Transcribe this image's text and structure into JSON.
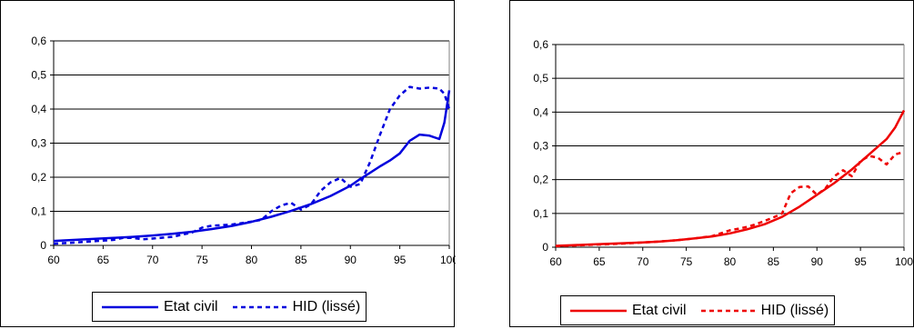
{
  "chart_data": [
    {
      "type": "line",
      "title": "",
      "xlabel": "",
      "ylabel": "",
      "xlim": [
        60,
        100
      ],
      "ylim": [
        0,
        0.6
      ],
      "x_ticks": [
        "60",
        "65",
        "70",
        "75",
        "80",
        "85",
        "90",
        "95",
        "100"
      ],
      "y_ticks": [
        "0",
        "0,1",
        "0,2",
        "0,3",
        "0,4",
        "0,5",
        "0,6"
      ],
      "grid": "horizontal",
      "legend_position": "bottom",
      "series": [
        {
          "name": "Etat civil",
          "style": "solid",
          "color": "#0000dd",
          "x": [
            60,
            62,
            64,
            66,
            68,
            70,
            72,
            74,
            76,
            78,
            80,
            82,
            84,
            86,
            88,
            90,
            91,
            92,
            93,
            94,
            95,
            96,
            97,
            98,
            99,
            99.5,
            100
          ],
          "y": [
            0.013,
            0.016,
            0.019,
            0.022,
            0.025,
            0.029,
            0.034,
            0.04,
            0.048,
            0.057,
            0.069,
            0.084,
            0.101,
            0.121,
            0.145,
            0.175,
            0.195,
            0.213,
            0.232,
            0.249,
            0.27,
            0.307,
            0.325,
            0.322,
            0.312,
            0.36,
            0.455
          ]
        },
        {
          "name": "HID (lissé)",
          "style": "dashed",
          "color": "#0000dd",
          "x": [
            60,
            62,
            64,
            66,
            67,
            68,
            69,
            70,
            72,
            74,
            75,
            76,
            78,
            80,
            81,
            82,
            83,
            84,
            85,
            86,
            87,
            88,
            89,
            90,
            91,
            92,
            93,
            94,
            95,
            96,
            97,
            98,
            99,
            99.5,
            100
          ],
          "y": [
            0.005,
            0.008,
            0.012,
            0.016,
            0.022,
            0.022,
            0.018,
            0.02,
            0.025,
            0.038,
            0.052,
            0.058,
            0.061,
            0.07,
            0.075,
            0.1,
            0.117,
            0.125,
            0.105,
            0.12,
            0.16,
            0.185,
            0.198,
            0.172,
            0.18,
            0.245,
            0.325,
            0.4,
            0.44,
            0.465,
            0.46,
            0.463,
            0.46,
            0.445,
            0.4
          ]
        }
      ]
    },
    {
      "type": "line",
      "title": "",
      "xlabel": "",
      "ylabel": "",
      "xlim": [
        60,
        100
      ],
      "ylim": [
        0,
        0.6
      ],
      "x_ticks": [
        "60",
        "65",
        "70",
        "75",
        "80",
        "85",
        "90",
        "95",
        "100"
      ],
      "y_ticks": [
        "0",
        "0,1",
        "0,2",
        "0,3",
        "0,4",
        "0,5",
        "0,6"
      ],
      "grid": "horizontal",
      "legend_position": "bottom",
      "series": [
        {
          "name": "Etat civil",
          "style": "solid",
          "color": "#ee0000",
          "x": [
            60,
            62,
            64,
            66,
            68,
            70,
            72,
            74,
            76,
            78,
            80,
            82,
            84,
            86,
            88,
            90,
            92,
            94,
            96,
            98,
            99,
            100
          ],
          "y": [
            0.004,
            0.006,
            0.008,
            0.01,
            0.012,
            0.014,
            0.017,
            0.021,
            0.026,
            0.032,
            0.041,
            0.053,
            0.068,
            0.09,
            0.12,
            0.155,
            0.19,
            0.23,
            0.275,
            0.32,
            0.355,
            0.405
          ]
        },
        {
          "name": "HID (lissé)",
          "style": "dashed",
          "color": "#ee0000",
          "x": [
            60,
            62,
            64,
            66,
            68,
            70,
            72,
            74,
            76,
            78,
            80,
            81,
            82,
            83,
            84,
            85,
            86,
            87,
            88,
            89,
            90,
            91,
            92,
            93,
            94,
            95,
            96,
            97,
            98,
            99,
            100
          ],
          "y": [
            0.003,
            0.005,
            0.007,
            0.009,
            0.011,
            0.014,
            0.017,
            0.021,
            0.026,
            0.033,
            0.05,
            0.055,
            0.06,
            0.068,
            0.078,
            0.088,
            0.1,
            0.16,
            0.178,
            0.18,
            0.155,
            0.175,
            0.21,
            0.228,
            0.21,
            0.255,
            0.27,
            0.265,
            0.245,
            0.275,
            0.282
          ]
        }
      ]
    }
  ]
}
